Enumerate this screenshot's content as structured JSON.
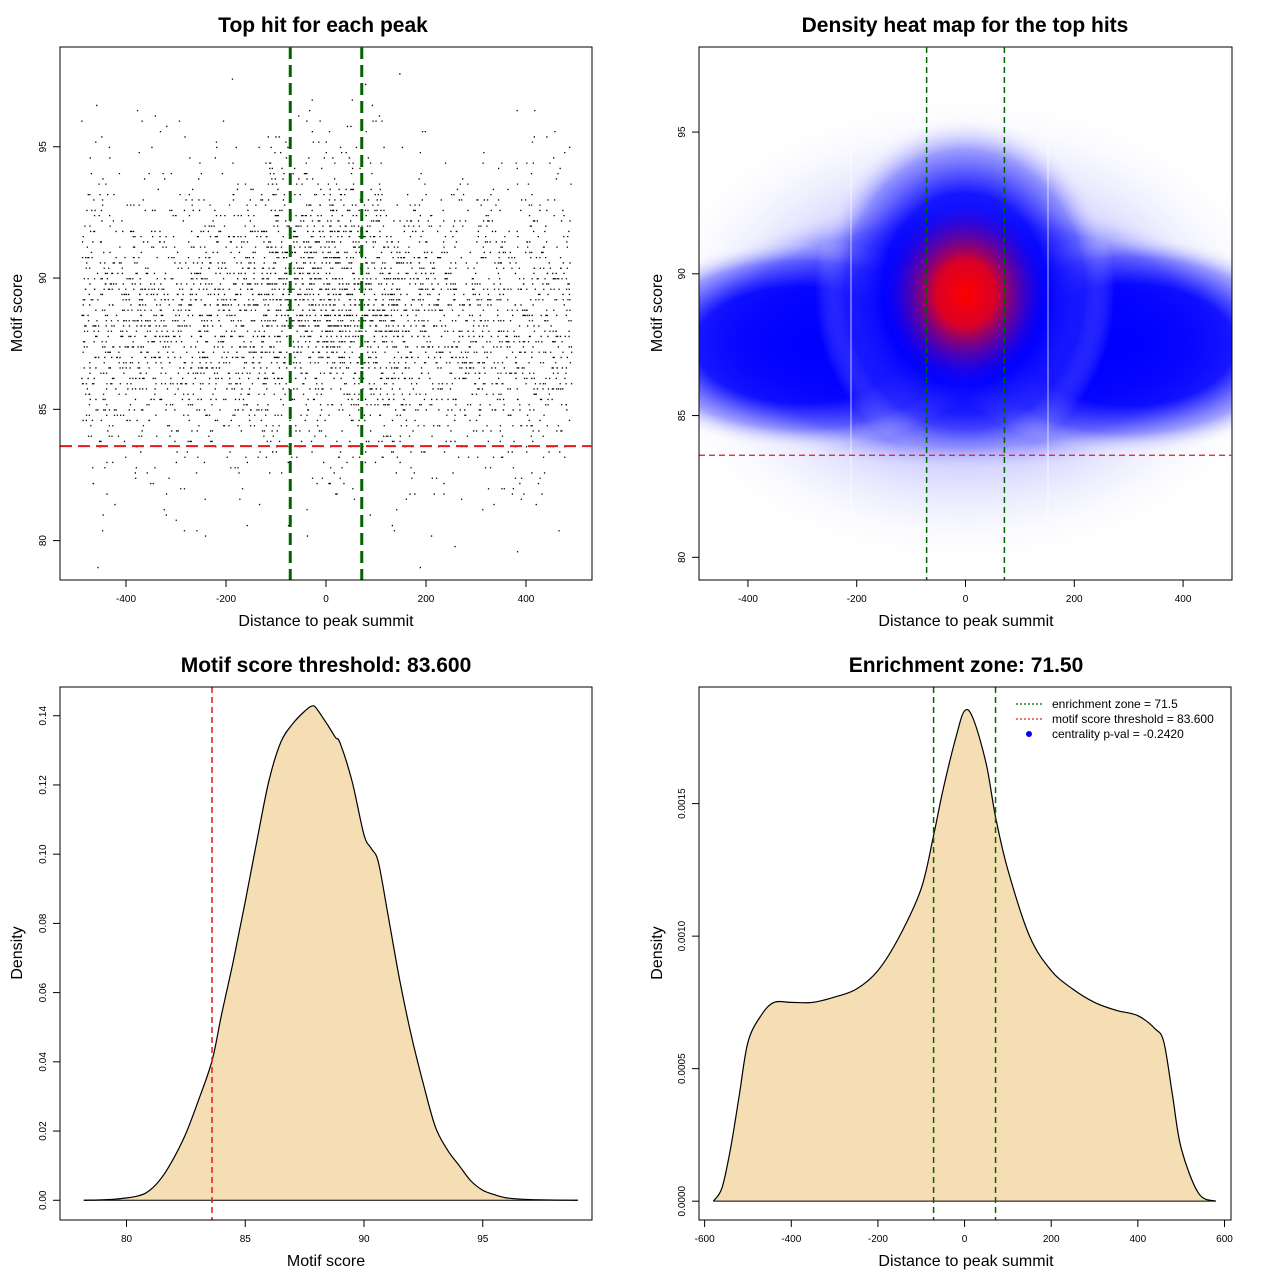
{
  "chart_data": [
    {
      "id": "scatter",
      "type": "scatter",
      "title": "Top hit for each peak",
      "xlabel": "Distance to peak summit",
      "ylabel": "Motif score",
      "xlim": [
        -532,
        532
      ],
      "ylim": [
        78.5,
        98.8
      ],
      "xticks": [
        -400,
        -200,
        0,
        200,
        400
      ],
      "yticks": [
        80,
        85,
        90,
        95
      ],
      "x_data_range": [
        -490,
        490
      ],
      "y_mean": 88.3,
      "y_sd": 2.8,
      "n_points": 7000,
      "vlines": [
        -71.5,
        71.5
      ],
      "hline": 83.6,
      "vline_color": "#006400",
      "hline_color": "#e31a1c"
    },
    {
      "id": "heatmap",
      "type": "heatmap",
      "title": "Density heat map for the top hits",
      "xlabel": "Distance to peak summit",
      "ylabel": "Motif score",
      "xlim": [
        -490,
        490
      ],
      "ylim": [
        79.2,
        98.0
      ],
      "xticks": [
        -400,
        -200,
        0,
        200,
        400
      ],
      "yticks": [
        80,
        85,
        90,
        95
      ],
      "peak": {
        "x": 0,
        "y": 89.3
      },
      "vlines": [
        -71.5,
        71.5
      ],
      "hline": 83.6,
      "color_scale": [
        "#ffffff",
        "#0000ff",
        "#ff0000"
      ]
    },
    {
      "id": "score_density",
      "type": "area",
      "title": "Motif score threshold: 83.600",
      "xlabel": "Motif score",
      "ylabel": "Density",
      "xlim": [
        77.2,
        99.6
      ],
      "ylim": [
        -0.0057,
        0.1483
      ],
      "xticks": [
        80,
        85,
        90,
        95
      ],
      "yticks": [
        0.0,
        0.02,
        0.04,
        0.06,
        0.08,
        0.1,
        0.12,
        0.14
      ],
      "ytick_labels": [
        "0.00",
        "0.02",
        "0.04",
        "0.06",
        "0.08",
        "0.10",
        "0.12",
        "0.14"
      ],
      "x": [
        78.2,
        79.5,
        80.5,
        81.0,
        81.5,
        82.0,
        82.5,
        83.0,
        83.6,
        84.0,
        84.5,
        85.0,
        85.5,
        86.0,
        86.5,
        87.0,
        87.5,
        87.8,
        88.0,
        88.5,
        88.8,
        89.0,
        89.5,
        90.0,
        90.3,
        90.6,
        91.0,
        91.5,
        92.0,
        92.5,
        93.0,
        93.5,
        94.0,
        94.5,
        95.0,
        95.5,
        96.0,
        97.0,
        99.0
      ],
      "y": [
        0.0,
        0.0003,
        0.0013,
        0.003,
        0.0067,
        0.0123,
        0.0193,
        0.0283,
        0.0403,
        0.0536,
        0.0692,
        0.0863,
        0.1042,
        0.1213,
        0.1324,
        0.1377,
        0.1413,
        0.1428,
        0.1421,
        0.137,
        0.1337,
        0.132,
        0.121,
        0.1056,
        0.1017,
        0.0978,
        0.0829,
        0.0637,
        0.0474,
        0.0336,
        0.0213,
        0.0147,
        0.0101,
        0.0056,
        0.0029,
        0.0016,
        0.0007,
        0.0002,
        0.0
      ],
      "fill": "#f5deb3",
      "vline": 83.6,
      "vline_color": "#e31a1c"
    },
    {
      "id": "distance_density",
      "type": "area",
      "title": "Enrichment zone: 71.50",
      "xlabel": "Distance to peak summit",
      "ylabel": "Density",
      "xlim": [
        -613,
        615
      ],
      "ylim": [
        -7.1e-05,
        0.00194
      ],
      "xticks": [
        -600,
        -400,
        -200,
        0,
        200,
        400,
        600
      ],
      "yticks": [
        0.0,
        0.0005,
        0.001,
        0.0015
      ],
      "ytick_labels": [
        "0.0000",
        "0.0005",
        "0.0010",
        "0.0015"
      ],
      "x": [
        -580,
        -560,
        -540,
        -520,
        -500,
        -470,
        -440,
        -400,
        -350,
        -300,
        -250,
        -200,
        -150,
        -100,
        -71.5,
        -50,
        -20,
        0,
        20,
        50,
        71.5,
        100,
        150,
        200,
        250,
        300,
        350,
        400,
        440,
        460,
        480,
        500,
        540,
        580
      ],
      "y": [
        0.0,
        5e-05,
        0.0002,
        0.0004,
        0.0006,
        0.0007,
        0.00075,
        0.00075,
        0.00075,
        0.00077,
        0.0008,
        0.00087,
        0.001,
        0.00118,
        0.00138,
        0.00155,
        0.00175,
        0.00185,
        0.00182,
        0.00165,
        0.00145,
        0.00125,
        0.001,
        0.00087,
        0.0008,
        0.00075,
        0.00072,
        0.0007,
        0.00065,
        0.0006,
        0.0004,
        0.0002,
        3e-05,
        0.0
      ],
      "fill": "#f5deb3",
      "vlines": [
        -71.5,
        71.5
      ],
      "vline_color": "#006400",
      "legend": {
        "position": "top-right",
        "entries": [
          {
            "label": "enrichment zone = 71.5",
            "color": "#006400",
            "kind": "line"
          },
          {
            "label": "motif score threshold = 83.600",
            "color": "#e31a1c",
            "kind": "line"
          },
          {
            "label": "centrality p-val = -0.2420",
            "color": "#0000ff",
            "kind": "dot"
          }
        ]
      }
    }
  ]
}
